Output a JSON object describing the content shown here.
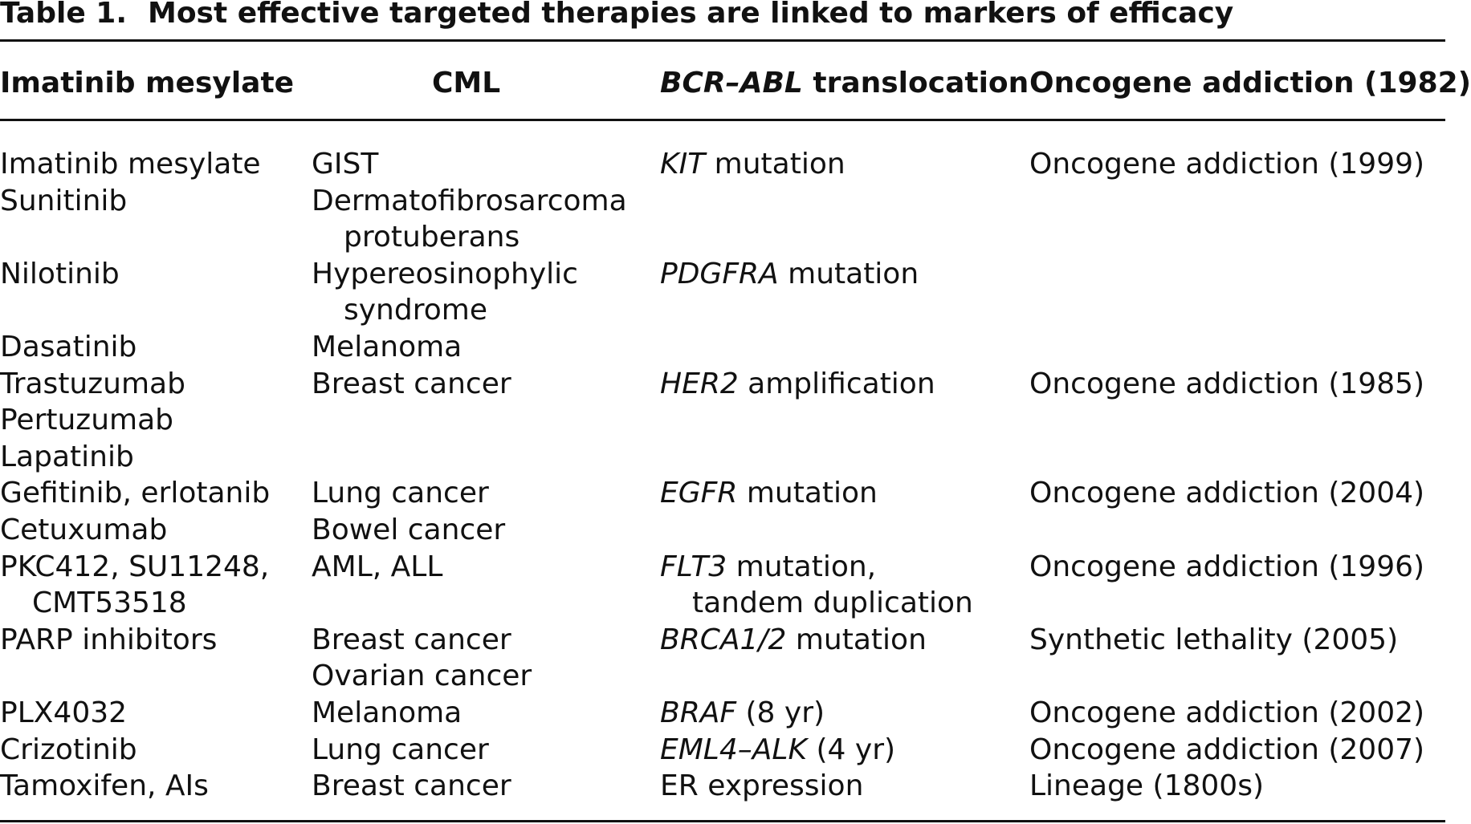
{
  "caption": {
    "label": "Table 1.",
    "title": "Most effective targeted therapies are linked to markers of efficacy"
  },
  "header": {
    "col1": "Imatinib mesylate",
    "col2": "CML",
    "col3_italic": "BCR–ABL",
    "col3_rest": " translocation",
    "col4": "Oncogene addiction (1982)"
  },
  "rows": [
    {
      "drug": [
        "Imatinib mesylate"
      ],
      "disease": [
        "GIST"
      ],
      "marker_italic": "KIT",
      "marker_rest": " mutation",
      "marker_line2": "",
      "rationale": "Oncogene addiction (1999)"
    },
    {
      "drug": [
        "Sunitinib"
      ],
      "disease": [
        "Dermatofibrosarcoma",
        "protuberans"
      ],
      "marker_italic": "",
      "marker_rest": "",
      "marker_line2": "",
      "rationale": ""
    },
    {
      "drug": [
        "Nilotinib"
      ],
      "disease": [
        "Hypereosinophylic",
        "syndrome"
      ],
      "marker_italic": "PDGFRA",
      "marker_rest": " mutation",
      "marker_line2": "",
      "rationale": ""
    },
    {
      "drug": [
        "Dasatinib"
      ],
      "disease": [
        "Melanoma"
      ],
      "marker_italic": "",
      "marker_rest": "",
      "marker_line2": "",
      "rationale": ""
    },
    {
      "drug": [
        "Trastuzumab"
      ],
      "disease": [
        "Breast cancer"
      ],
      "marker_italic": "HER2",
      "marker_rest": " amplification",
      "marker_line2": "",
      "rationale": "Oncogene addiction (1985)"
    },
    {
      "drug": [
        "Pertuzumab"
      ],
      "disease": [
        ""
      ],
      "marker_italic": "",
      "marker_rest": "",
      "marker_line2": "",
      "rationale": ""
    },
    {
      "drug": [
        "Lapatinib"
      ],
      "disease": [
        ""
      ],
      "marker_italic": "",
      "marker_rest": "",
      "marker_line2": "",
      "rationale": ""
    },
    {
      "drug": [
        "Gefitinib, erlotanib"
      ],
      "disease": [
        "Lung cancer"
      ],
      "marker_italic": "EGFR",
      "marker_rest": " mutation",
      "marker_line2": "",
      "rationale": "Oncogene addiction (2004)"
    },
    {
      "drug": [
        "Cetuxumab"
      ],
      "disease": [
        "Bowel cancer"
      ],
      "marker_italic": "",
      "marker_rest": "",
      "marker_line2": "",
      "rationale": ""
    },
    {
      "drug": [
        "PKC412, SU11248,",
        "CMT53518"
      ],
      "disease": [
        "AML, ALL"
      ],
      "marker_italic": "FLT3",
      "marker_rest": " mutation,",
      "marker_line2": "tandem duplication",
      "rationale": "Oncogene addiction (1996)"
    },
    {
      "drug": [
        "PARP inhibitors"
      ],
      "disease": [
        "Breast cancer",
        "Ovarian cancer"
      ],
      "marker_italic": "BRCA1/2",
      "marker_rest": " mutation",
      "marker_line2": "",
      "rationale": "Synthetic lethality (2005)"
    },
    {
      "drug": [
        "PLX4032"
      ],
      "disease": [
        "Melanoma"
      ],
      "marker_italic": "BRAF",
      "marker_rest": " (8 yr)",
      "marker_line2": "",
      "rationale": "Oncogene addiction (2002)"
    },
    {
      "drug": [
        "Crizotinib"
      ],
      "disease": [
        "Lung cancer"
      ],
      "marker_italic": "EML4–ALK",
      "marker_rest": " (4 yr)",
      "marker_line2": "",
      "rationale": "Oncogene addiction (2007)"
    },
    {
      "drug": [
        "Tamoxifen, AIs"
      ],
      "disease": [
        "Breast cancer"
      ],
      "marker_italic": "",
      "marker_rest": "ER expression",
      "marker_line2": "",
      "rationale": "Lineage (1800s)"
    }
  ]
}
